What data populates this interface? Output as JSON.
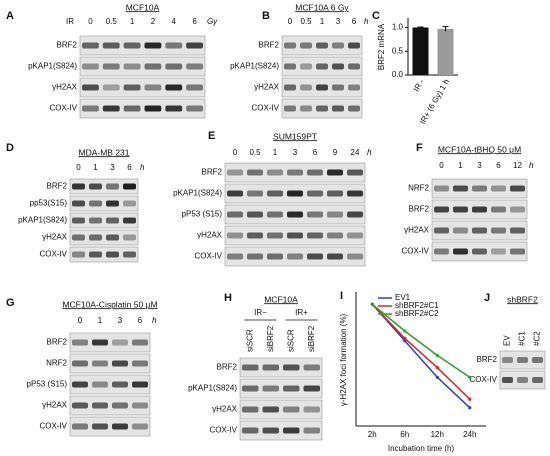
{
  "panels": [
    {
      "label": "A",
      "title": "MCF10A",
      "prefix": "IR",
      "lanes": [
        "0",
        "0.5",
        "1",
        "2",
        "4",
        "6"
      ],
      "unit": "Gy",
      "rows": [
        "BRF2",
        "pKAP1(S824)",
        "γH2AX",
        "COX-IV"
      ]
    },
    {
      "label": "B",
      "title": "MCF10A 6 Gy",
      "lanes": [
        "0",
        "0.5",
        "1",
        "3",
        "6"
      ],
      "unit": "h",
      "rows": [
        "BRF2",
        "pKAP1(S824)",
        "γH2AX",
        "COX-IV"
      ]
    },
    {
      "label": "D",
      "title": "MDA-MB 231",
      "lanes": [
        "0",
        "1",
        "3",
        "6"
      ],
      "unit": "h",
      "rows": [
        "BRF2",
        "pp53(S15)",
        "pKAP1(S824)",
        "γH2AX",
        "COX-IV"
      ]
    },
    {
      "label": "E",
      "title": "SUM159PT",
      "lanes": [
        "0",
        "0.5",
        "1",
        "3",
        "6",
        "9",
        "24"
      ],
      "unit": "h",
      "rows": [
        "BRF2",
        "pKAP1(S824)",
        "pP53 (S15)",
        "γH2AX",
        "COX-IV"
      ]
    },
    {
      "label": "F",
      "title": "MCF10A-tBHQ 50 μM",
      "lanes": [
        "0",
        "1",
        "3",
        "6",
        "12"
      ],
      "unit": "h",
      "rows": [
        "NRF2",
        "BRF2",
        "γH2AX",
        "COX-IV"
      ]
    },
    {
      "label": "G",
      "title": "MCF10A-Cisplatin 50 μM",
      "lanes": [
        "0",
        "1",
        "3",
        "6"
      ],
      "unit": "h",
      "rows": [
        "BRF2",
        "NRF2",
        "pP53 (S15)",
        "γH2AX",
        "COX-IV"
      ]
    },
    {
      "label": "H",
      "title": "MCF10A",
      "groups": [
        "IR−",
        "IR+"
      ],
      "lanes": [
        "siSCR",
        "siBRF2",
        "siSCR",
        "siBRF2"
      ],
      "rows": [
        "BRF2",
        "pKAP1(S824)",
        "γH2AX",
        "COX-IV"
      ]
    },
    {
      "label": "J",
      "title": "shBRF2",
      "lanes": [
        "EV",
        "#C1",
        "#C2"
      ],
      "rows": [
        "BRF2",
        "COX-IV"
      ]
    }
  ],
  "chart_data": [
    {
      "type": "bar",
      "panel_label": "C",
      "ylabel": "BRF2 mRNA",
      "categories": [
        "IR -",
        "IR+ (6 Gy) 1 h"
      ],
      "values": [
        1.0,
        0.97
      ],
      "errors": [
        0.01,
        0.05
      ],
      "colors": [
        "#111111",
        "#9a9a9a"
      ],
      "ylim": [
        0,
        1.2
      ],
      "yticks": [
        {
          "value": 0,
          "label": "0.0"
        },
        {
          "value": 0.5,
          "label": "0.5"
        },
        {
          "value": 1,
          "label": "1.0"
        }
      ]
    },
    {
      "type": "line",
      "panel_label": "I",
      "ylabel": "γ-H2AX foci formation (%)",
      "xlabel": "Incubation time (h)",
      "categories": [
        "2h",
        "6h",
        "12h",
        "24h"
      ],
      "ylim": [
        0,
        110
      ],
      "series": [
        {
          "name": "EV1",
          "color": "#2b3fc4",
          "values": [
            100,
            70,
            40,
            15
          ]
        },
        {
          "name": "shBRF2#C1",
          "color": "#d62728",
          "values": [
            100,
            72,
            48,
            22
          ]
        },
        {
          "name": "shBRF2#C2",
          "color": "#2ca02c",
          "values": [
            100,
            78,
            58,
            40
          ]
        }
      ]
    }
  ]
}
